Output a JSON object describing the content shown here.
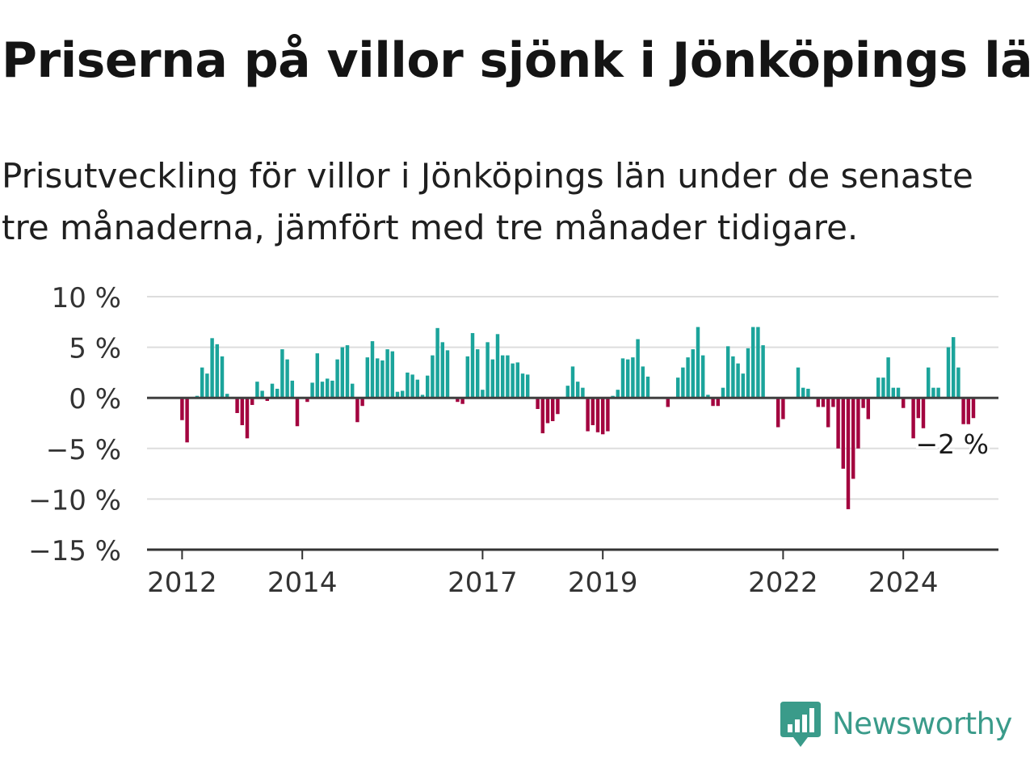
{
  "title": "Priserna på villor sjönk i Jönköpings län",
  "subtitle": "Prisutveckling för villor i Jönköpings län under de senaste tre månaderna, jämfört med tre månader tidigare.",
  "brand": {
    "name": "Newsworthy",
    "color": "#3a9b8a"
  },
  "colors": {
    "positive": "#1ba49b",
    "negative": "#a3043f",
    "grid": "#dddddd",
    "axis": "#333333",
    "zero_line": "#404040"
  },
  "chart_data": {
    "type": "bar",
    "ylim": [
      -15,
      10
    ],
    "y_ticks": [
      {
        "value": 10,
        "label": "10 %"
      },
      {
        "value": 5,
        "label": "5 %"
      },
      {
        "value": 0,
        "label": "0 %"
      },
      {
        "value": -5,
        "label": "−5 %"
      },
      {
        "value": -10,
        "label": "−10 %"
      },
      {
        "value": -15,
        "label": "−15 %"
      }
    ],
    "x_ticks": [
      {
        "x": "2012-01",
        "label": "2012"
      },
      {
        "x": "2014-01",
        "label": "2014"
      },
      {
        "x": "2017-01",
        "label": "2017"
      },
      {
        "x": "2019-01",
        "label": "2019"
      },
      {
        "x": "2022-01",
        "label": "2022"
      },
      {
        "x": "2024-01",
        "label": "2024"
      }
    ],
    "x_range": [
      "2011-06",
      "2025-08"
    ],
    "last_value_label": "−2 %",
    "series": [
      {
        "x": [
          "2012-01",
          "2012-02",
          "2012-03",
          "2012-04",
          "2012-05",
          "2012-06",
          "2012-07",
          "2012-08",
          "2012-09",
          "2012-10",
          "2012-11",
          "2012-12",
          "2013-01",
          "2013-02",
          "2013-03",
          "2013-04",
          "2013-05",
          "2013-06",
          "2013-07",
          "2013-08",
          "2013-09",
          "2013-10",
          "2013-11",
          "2013-12",
          "2014-01",
          "2014-02",
          "2014-03",
          "2014-04",
          "2014-05",
          "2014-06",
          "2014-07",
          "2014-08",
          "2014-09",
          "2014-10",
          "2014-11",
          "2014-12",
          "2015-01",
          "2015-02",
          "2015-03",
          "2015-04",
          "2015-05",
          "2015-06",
          "2015-07",
          "2015-08",
          "2015-09",
          "2015-10",
          "2015-11",
          "2015-12",
          "2016-01",
          "2016-02",
          "2016-03",
          "2016-04",
          "2016-05",
          "2016-06",
          "2016-07",
          "2016-08",
          "2016-09",
          "2016-10",
          "2016-11",
          "2016-12",
          "2017-01",
          "2017-02",
          "2017-03",
          "2017-04",
          "2017-05",
          "2017-06",
          "2017-07",
          "2017-08",
          "2017-09",
          "2017-10",
          "2017-11",
          "2017-12",
          "2018-01",
          "2018-02",
          "2018-03",
          "2018-04",
          "2018-05",
          "2018-06",
          "2018-07",
          "2018-08",
          "2018-09",
          "2018-10",
          "2018-11",
          "2018-12",
          "2019-01",
          "2019-02",
          "2019-03",
          "2019-04",
          "2019-05",
          "2019-06",
          "2019-07",
          "2019-08",
          "2019-09",
          "2019-10",
          "2019-11",
          "2019-12",
          "2020-01",
          "2020-02",
          "2020-03",
          "2020-04",
          "2020-05",
          "2020-06",
          "2020-07",
          "2020-08",
          "2020-09",
          "2020-10",
          "2020-11",
          "2020-12",
          "2021-01",
          "2021-02",
          "2021-03",
          "2021-04",
          "2021-05",
          "2021-06",
          "2021-07",
          "2021-08",
          "2021-09",
          "2021-10",
          "2021-11",
          "2021-12",
          "2022-01",
          "2022-02",
          "2022-03",
          "2022-04",
          "2022-05",
          "2022-06",
          "2022-07",
          "2022-08",
          "2022-09",
          "2022-10",
          "2022-11",
          "2022-12",
          "2023-01",
          "2023-02",
          "2023-03",
          "2023-04",
          "2023-05",
          "2023-06",
          "2023-07",
          "2023-08",
          "2023-09",
          "2023-10",
          "2023-11",
          "2023-12",
          "2024-01",
          "2024-02",
          "2024-03",
          "2024-04",
          "2024-05",
          "2024-06",
          "2024-07",
          "2024-08",
          "2024-09",
          "2024-10",
          "2024-11",
          "2024-12",
          "2025-01",
          "2025-02",
          "2025-03"
        ],
        "values": [
          -2.2,
          -4.4,
          0.1,
          0.2,
          3.0,
          2.4,
          5.9,
          5.3,
          4.1,
          0.4,
          0.1,
          -1.5,
          -2.7,
          -4.0,
          -0.7,
          1.6,
          0.7,
          -0.3,
          1.4,
          0.9,
          4.8,
          3.8,
          1.7,
          -2.8,
          0.1,
          -0.4,
          1.5,
          4.4,
          1.6,
          1.9,
          1.7,
          3.8,
          5.0,
          5.2,
          1.4,
          -2.4,
          -0.8,
          4.0,
          5.6,
          3.9,
          3.7,
          4.8,
          4.6,
          0.6,
          0.7,
          2.5,
          2.3,
          1.8,
          0.3,
          2.2,
          4.2,
          6.9,
          5.5,
          4.7,
          0.1,
          -0.4,
          -0.6,
          4.1,
          6.4,
          4.8,
          0.8,
          5.5,
          3.8,
          6.3,
          4.2,
          4.2,
          3.4,
          3.5,
          2.4,
          2.3,
          0.1,
          -1.1,
          -3.5,
          -2.5,
          -2.3,
          -1.6,
          0.1,
          1.2,
          3.1,
          1.6,
          1.0,
          -3.3,
          -2.7,
          -3.4,
          -3.6,
          -3.3,
          0.2,
          0.8,
          3.9,
          3.8,
          4.0,
          5.8,
          3.1,
          2.1,
          0.1,
          0.1,
          0.1,
          -0.9,
          0.1,
          2.0,
          3.0,
          4.0,
          4.8,
          7.0,
          4.2,
          0.3,
          -0.8,
          -0.8,
          1.0,
          5.1,
          4.1,
          3.4,
          2.4,
          4.9,
          7.0,
          7.0,
          5.2,
          0.1,
          0.1,
          -2.9,
          -2.1,
          0.1,
          0.1,
          3.0,
          1.0,
          0.9,
          0.1,
          -0.9,
          -0.9,
          -2.9,
          -0.9,
          -5.0,
          -7.0,
          -11.0,
          -8.0,
          -5.0,
          -1.0,
          -2.1,
          0.1,
          2.0,
          2.0,
          4.0,
          1.0,
          1.0,
          -1.0,
          0.1,
          -4.0,
          -2.0,
          -3.0,
          3.0,
          1.0,
          1.0,
          0.1,
          5.0,
          6.0,
          3.0,
          -2.6,
          -2.6,
          -2.0
        ]
      }
    ]
  }
}
